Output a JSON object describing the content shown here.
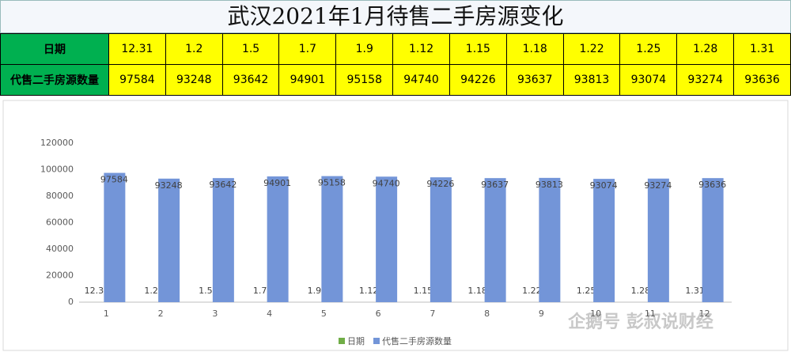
{
  "table": {
    "title": "武汉2021年1月待售二手房源变化",
    "rows": [
      [
        "日期",
        "12.31",
        "1.2",
        "1.5",
        "1.7",
        "1.9",
        "1.12",
        "1.15",
        "1.18",
        "1.22",
        "1.25",
        "1.28",
        "1.31"
      ],
      [
        "代售二手房源数量",
        "97584",
        "93248",
        "93642",
        "94901",
        "95158",
        "94740",
        "94226",
        "93637",
        "93813",
        "93074",
        "93274",
        "93636"
      ]
    ]
  },
  "chart_data": {
    "type": "bar",
    "categories": [
      "1",
      "2",
      "3",
      "4",
      "5",
      "6",
      "7",
      "8",
      "9",
      "10",
      "11",
      "12"
    ],
    "series": [
      {
        "name": "日期",
        "color": "#70ad47",
        "values": [
          12.31,
          1.2,
          1.5,
          1.7,
          1.9,
          1.12,
          1.15,
          1.18,
          1.22,
          1.25,
          1.28,
          1.31
        ]
      },
      {
        "name": "代售二手房源数量",
        "color": "#7395d8",
        "values": [
          97584,
          93248,
          93642,
          94901,
          95158,
          94740,
          94226,
          93637,
          93813,
          93074,
          93274,
          93636
        ]
      }
    ],
    "ylim": [
      0,
      120000
    ],
    "yticks": [
      0,
      20000,
      40000,
      60000,
      80000,
      100000,
      120000
    ],
    "grid": false,
    "legend": "bottom"
  },
  "watermark": "企鹅号 彭叔说财经"
}
